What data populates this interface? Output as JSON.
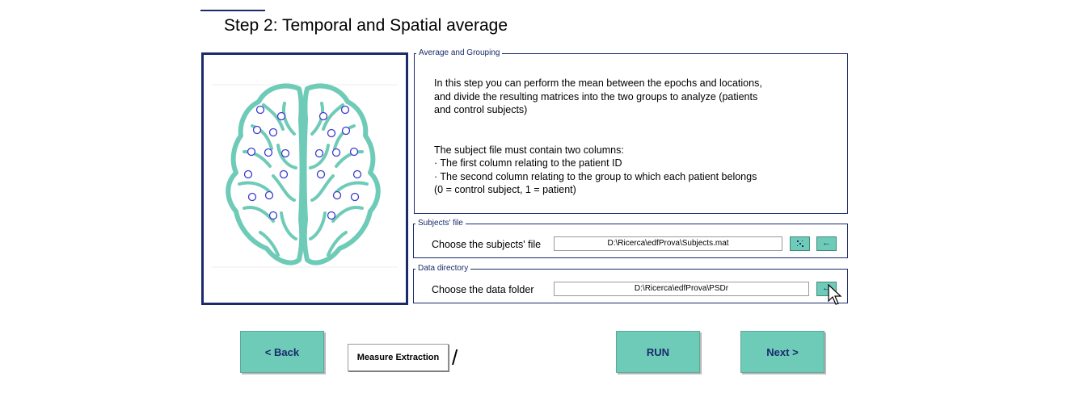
{
  "title": "Step 2: Temporal and Spatial average",
  "average_group": {
    "legend": "Average and Grouping",
    "paragraph1": "In this step you can perform the mean between the epochs and locations,\nand divide the resulting matrices into the two groups to analyze (patients\nand control subjects)",
    "paragraph2": "The subject file must contain two columns:\n· The first column relating to the patient ID\n· The second column relating to the group to which each patient belongs\n   (0 = control subject, 1 = patient)"
  },
  "subjects_file": {
    "legend": "Subjects' file",
    "label": "Choose the subjects' file",
    "path": "D:\\Ricerca\\edfProva\\Subjects.mat",
    "browse_icon": "browse-icon",
    "arrow_glyph": "←"
  },
  "data_directory": {
    "legend": "Data directory",
    "label": "Choose the data folder",
    "path": "D:\\Ricerca\\edfProva\\PSDr",
    "arrow_glyph": "←"
  },
  "buttons": {
    "back": "<  Back",
    "measure": "Measure Extraction",
    "slash": "/",
    "run": "RUN",
    "next": "Next  >"
  },
  "colors": {
    "accent": "#6ecbb7",
    "navy": "#1a2a6c",
    "brain": "#6ecbb7",
    "electrode": "#3a3ad0"
  }
}
